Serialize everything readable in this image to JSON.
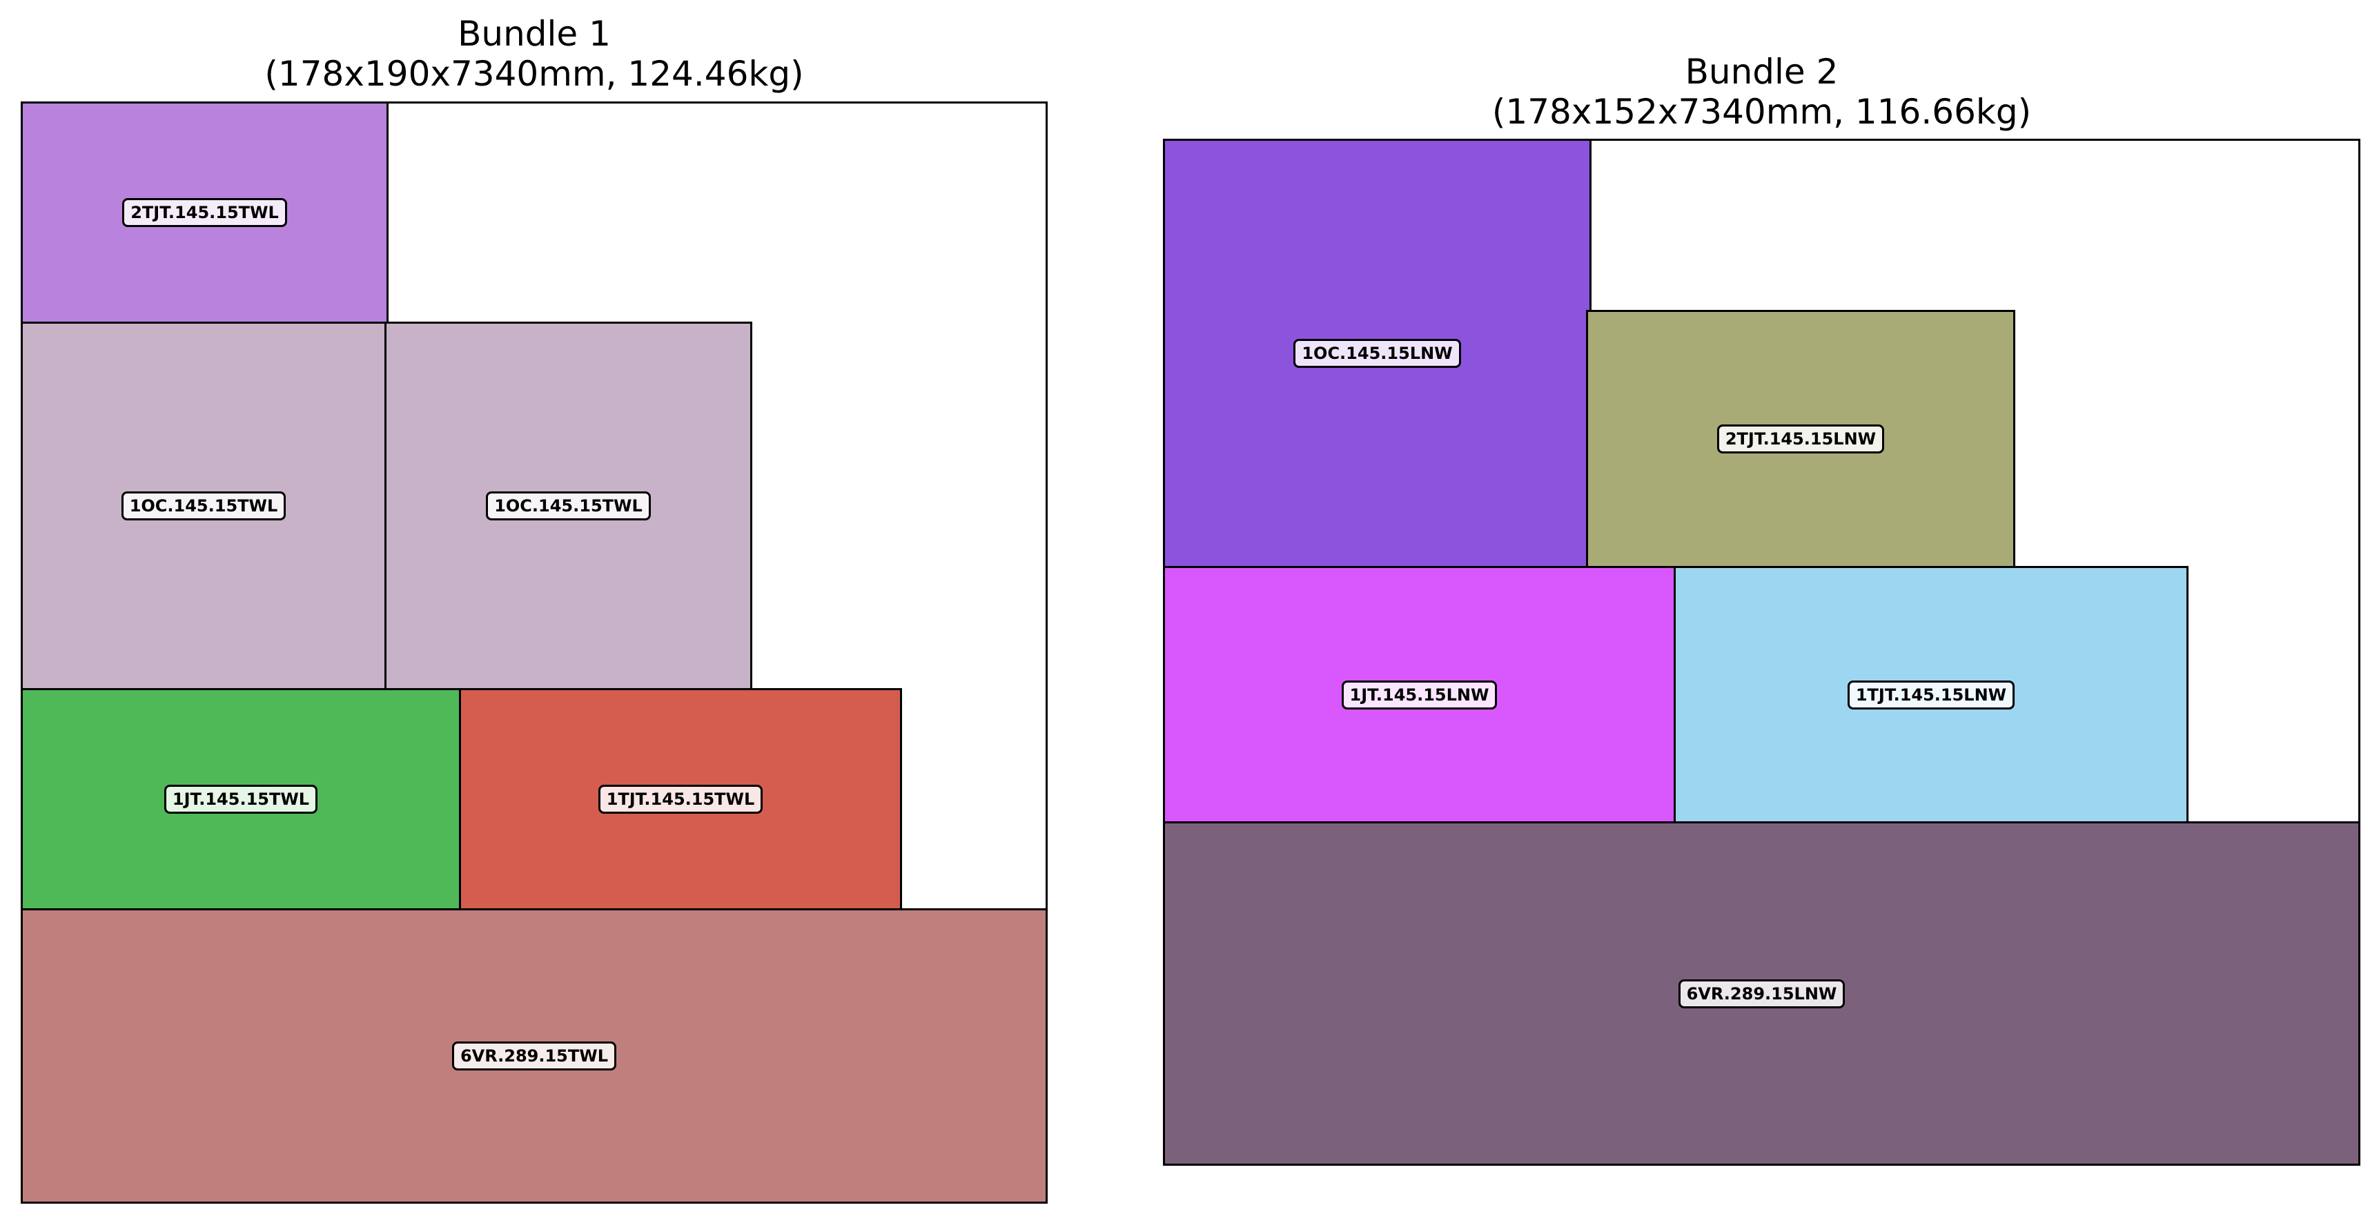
{
  "bundles": [
    {
      "title": "Bundle 1",
      "subtitle": "(178x190x7340mm, 124.46kg)",
      "pieces": [
        {
          "label": "2TJT.145.15TWL",
          "color": "#b983dd"
        },
        {
          "label": "1OC.145.15TWL",
          "color": "#c7b2c7"
        },
        {
          "label": "1OC.145.15TWL",
          "color": "#c7b2c7"
        },
        {
          "label": "1JT.145.15TWL",
          "color": "#4fb857"
        },
        {
          "label": "1TJT.145.15TWL",
          "color": "#d45d4f"
        },
        {
          "label": "6VR.289.15TWL",
          "color": "#bf7f7d"
        }
      ]
    },
    {
      "title": "Bundle 2",
      "subtitle": "(178x152x7340mm, 116.66kg)",
      "pieces": [
        {
          "label": "1OC.145.15LNW",
          "color": "#8c53dc"
        },
        {
          "label": "2TJT.145.15LNW",
          "color": "#a9ab77"
        },
        {
          "label": "1JT.145.15LNW",
          "color": "#d958fd"
        },
        {
          "label": "1TJT.145.15LNW",
          "color": "#9dd6f0"
        },
        {
          "label": "6VR.289.15LNW",
          "color": "#7c617d"
        }
      ]
    }
  ]
}
